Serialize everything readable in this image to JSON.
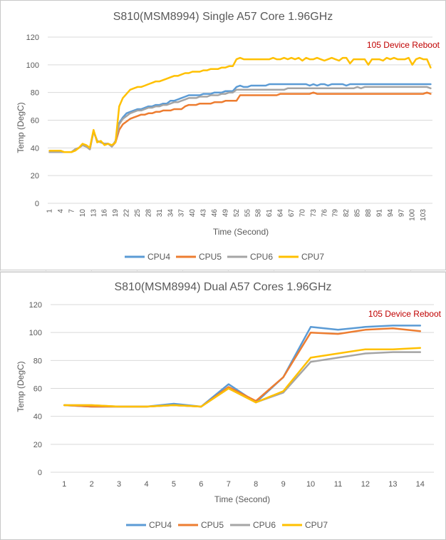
{
  "chart_data": [
    {
      "type": "line",
      "title": "S810(MSM8994) Single A57 Core 1.96GHz",
      "xlabel": "Time (Second)",
      "ylabel": "Temp (DegC)",
      "ylim": [
        0,
        120
      ],
      "yticks": [
        "0",
        "20",
        "40",
        "60",
        "80",
        "100",
        "120"
      ],
      "xlim": [
        1,
        105
      ],
      "x_tick_labels": [
        "1",
        "4",
        "7",
        "10",
        "13",
        "16",
        "19",
        "22",
        "25",
        "28",
        "31",
        "34",
        "37",
        "40",
        "43",
        "46",
        "49",
        "52",
        "55",
        "58",
        "61",
        "64",
        "67",
        "70",
        "73",
        "76",
        "79",
        "82",
        "85",
        "88",
        "91",
        "94",
        "97",
        "100",
        "103"
      ],
      "annotation": "105 Device Reboot",
      "legend": [
        "CPU4",
        "CPU5",
        "CPU6",
        "CPU7"
      ],
      "series": [
        {
          "name": "CPU4",
          "color": "#5b9bd5",
          "values": [
            37,
            37,
            37,
            37,
            37,
            37,
            37,
            39,
            40,
            42,
            41,
            39,
            52,
            45,
            44,
            43,
            43,
            41,
            45,
            58,
            62,
            65,
            66,
            67,
            68,
            68,
            69,
            70,
            70,
            71,
            71,
            72,
            72,
            74,
            74,
            75,
            76,
            77,
            78,
            78,
            78,
            78,
            79,
            79,
            79,
            80,
            80,
            80,
            81,
            81,
            81,
            84,
            85,
            84,
            84,
            85,
            85,
            85,
            85,
            85,
            86,
            86,
            86,
            86,
            86,
            86,
            86,
            86,
            86,
            86,
            86,
            85,
            86,
            85,
            86,
            86,
            85,
            86,
            86,
            86,
            86,
            85,
            86,
            86,
            86,
            86,
            86,
            86,
            86,
            86,
            86,
            86,
            86,
            86,
            86,
            86,
            86,
            86,
            86,
            86,
            86,
            86,
            86,
            86,
            86
          ]
        },
        {
          "name": "CPU5",
          "color": "#ed7d31",
          "values": [
            37,
            37,
            37,
            37,
            37,
            37,
            37,
            39,
            40,
            42,
            41,
            39,
            52,
            45,
            44,
            43,
            43,
            41,
            44,
            53,
            57,
            59,
            61,
            62,
            63,
            64,
            64,
            65,
            65,
            66,
            66,
            67,
            67,
            67,
            68,
            68,
            68,
            70,
            71,
            71,
            71,
            72,
            72,
            72,
            72,
            73,
            73,
            73,
            74,
            74,
            74,
            74,
            78,
            78,
            78,
            78,
            78,
            78,
            78,
            78,
            78,
            78,
            78,
            79,
            79,
            79,
            79,
            79,
            79,
            79,
            79,
            79,
            80,
            79,
            79,
            79,
            79,
            79,
            79,
            79,
            79,
            79,
            79,
            79,
            79,
            79,
            79,
            79,
            79,
            79,
            79,
            79,
            79,
            79,
            79,
            79,
            79,
            79,
            79,
            79,
            79,
            79,
            79,
            80,
            79
          ]
        },
        {
          "name": "CPU6",
          "color": "#a5a5a5",
          "values": [
            37,
            37,
            37,
            37,
            37,
            37,
            37,
            39,
            40,
            42,
            41,
            39,
            52,
            45,
            44,
            43,
            43,
            41,
            45,
            57,
            61,
            63,
            65,
            66,
            67,
            67,
            68,
            69,
            69,
            70,
            70,
            71,
            71,
            72,
            73,
            73,
            74,
            75,
            76,
            76,
            76,
            77,
            77,
            77,
            78,
            78,
            78,
            79,
            79,
            80,
            80,
            82,
            82,
            82,
            82,
            82,
            82,
            82,
            82,
            82,
            82,
            82,
            82,
            82,
            82,
            83,
            83,
            83,
            83,
            83,
            83,
            83,
            83,
            83,
            83,
            83,
            83,
            83,
            83,
            83,
            83,
            83,
            83,
            83,
            84,
            83,
            84,
            84,
            84,
            84,
            84,
            84,
            84,
            84,
            84,
            84,
            84,
            84,
            84,
            84,
            84,
            84,
            84,
            84,
            83
          ]
        },
        {
          "name": "CPU7",
          "color": "#ffc000",
          "values": [
            38,
            38,
            38,
            38,
            37,
            37,
            37,
            38,
            40,
            43,
            42,
            40,
            53,
            44,
            45,
            42,
            43,
            42,
            44,
            70,
            76,
            79,
            82,
            83,
            84,
            84,
            85,
            86,
            87,
            88,
            88,
            89,
            90,
            91,
            92,
            92,
            93,
            94,
            94,
            95,
            95,
            95,
            96,
            96,
            97,
            97,
            97,
            98,
            98,
            99,
            99,
            104,
            105,
            104,
            104,
            104,
            104,
            104,
            104,
            104,
            104,
            105,
            104,
            104,
            105,
            104,
            105,
            104,
            105,
            103,
            105,
            104,
            104,
            105,
            104,
            103,
            104,
            105,
            104,
            103,
            105,
            105,
            101,
            104,
            104,
            104,
            104,
            100,
            104,
            104,
            104,
            103,
            105,
            104,
            105,
            104,
            104,
            104,
            105,
            100,
            104,
            105,
            104,
            104,
            98
          ]
        }
      ]
    },
    {
      "type": "line",
      "title": "S810(MSM8994) Dual A57 Cores 1.96GHz",
      "xlabel": "Time (Second)",
      "ylabel": "Temp (DegC)",
      "ylim": [
        0,
        120
      ],
      "yticks": [
        "0",
        "20",
        "40",
        "60",
        "80",
        "100",
        "120"
      ],
      "x_tick_labels": [
        "1",
        "2",
        "3",
        "4",
        "5",
        "6",
        "7",
        "8",
        "9",
        "10",
        "11",
        "12",
        "13",
        "14"
      ],
      "annotation": "105 Device Reboot",
      "legend": [
        "CPU4",
        "CPU5",
        "CPU6",
        "CPU7"
      ],
      "series": [
        {
          "name": "CPU4",
          "color": "#5b9bd5",
          "values": [
            48,
            47,
            47,
            47,
            49,
            47,
            63,
            50,
            68,
            104,
            102,
            104,
            105,
            105
          ]
        },
        {
          "name": "CPU5",
          "color": "#ed7d31",
          "values": [
            48,
            47,
            47,
            47,
            48,
            47,
            61,
            51,
            68,
            100,
            99,
            102,
            103,
            101
          ]
        },
        {
          "name": "CPU6",
          "color": "#a5a5a5",
          "values": [
            48,
            48,
            47,
            47,
            48,
            47,
            60,
            50,
            57,
            79,
            82,
            85,
            86,
            86
          ]
        },
        {
          "name": "CPU7",
          "color": "#ffc000",
          "values": [
            48,
            48,
            47,
            47,
            48,
            47,
            60,
            50,
            58,
            82,
            85,
            88,
            88,
            89
          ]
        }
      ]
    }
  ]
}
